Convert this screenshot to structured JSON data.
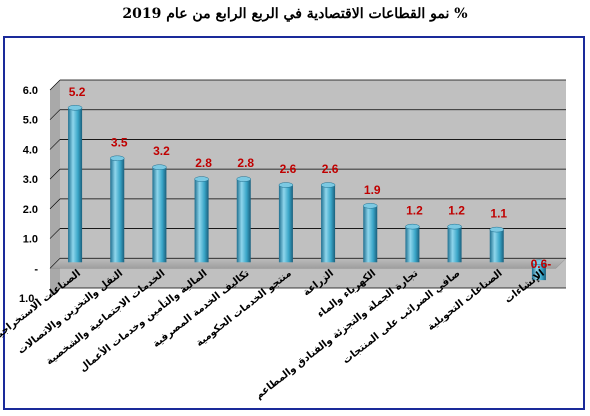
{
  "chart_data": {
    "type": "bar",
    "title": "نمو القطاعات الاقتصادية في الربع الرابع من عام 2019 %",
    "categories": [
      "الصناعات الاستخراجية",
      "النقل والتخزين والاتصالات",
      "الخدمات الاجتماعية والشخصية",
      "المالية والتأمين وخدمات الأعمال",
      "تكاليف الخدمة المصرفية",
      "منتجو الخدمات الحكومية",
      "الزراعة",
      "الكهرباء والماء",
      "تجارة الجملة والتجزئة والفنادق والمطاعم",
      "صافي الضرائب على المنتجات",
      "الصناعات التحويلية",
      "الإنشاءات"
    ],
    "values": [
      5.2,
      3.5,
      3.2,
      2.8,
      2.8,
      2.6,
      2.6,
      1.9,
      1.2,
      1.2,
      1.1,
      -0.6
    ],
    "data_labels": [
      "5.2",
      "3.5",
      "3.2",
      "2.8",
      "2.8",
      "2.6",
      "2.6",
      "1.9",
      "1.2",
      "1.2",
      "1.1",
      "0.6-"
    ],
    "y_ticks": [
      "6.0",
      "5.0",
      "4.0",
      "3.0",
      "2.0",
      "1.0",
      "-",
      "1.0-"
    ],
    "ylim": [
      -1.0,
      6.0
    ],
    "grid": true,
    "colors": {
      "bar": "#3aa6c8",
      "bar_dark": "#1f6f8f",
      "bar_light": "#8fd6ec",
      "plot_bg": "#c0c0c0",
      "label": "#c00000",
      "frame": "#1a2a9a"
    }
  }
}
